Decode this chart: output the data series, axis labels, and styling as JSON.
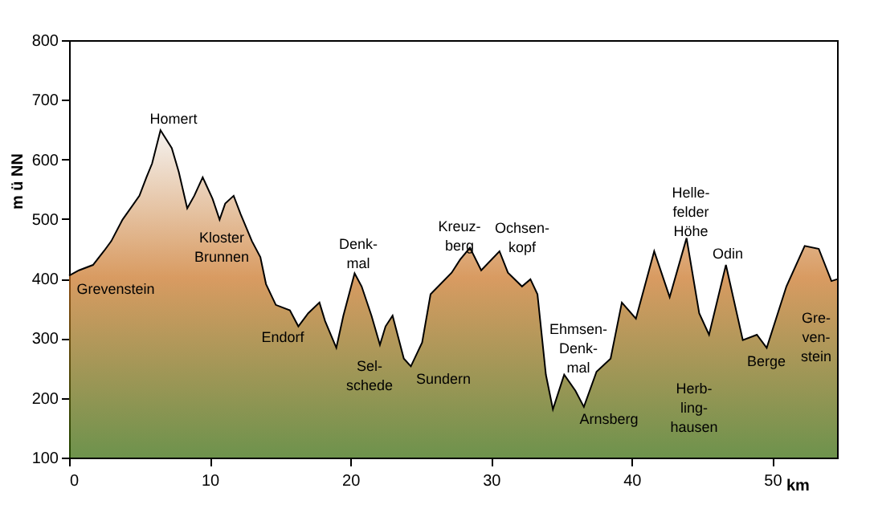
{
  "chart_data": {
    "type": "area",
    "xlabel": "km",
    "ylabel": "m ü NN",
    "x": [
      0,
      0.7,
      1.7,
      2.5,
      3,
      3.8,
      5,
      5.5,
      5.9,
      6.5,
      7.3,
      7.8,
      8.4,
      8.9,
      9.5,
      10.2,
      10.7,
      11.1,
      11.7,
      12.2,
      13,
      13.6,
      14,
      14.7,
      15.7,
      16.3,
      17,
      17.8,
      18.2,
      19,
      19.5,
      20.3,
      20.8,
      21.5,
      22.1,
      22.5,
      23,
      23.8,
      24.3,
      25.1,
      25.7,
      27.2,
      27.8,
      28.5,
      29.3,
      30.6,
      31.2,
      32.2,
      32.8,
      33.3,
      33.9,
      34.4,
      35.2,
      36,
      36.6,
      37.5,
      38.5,
      39.3,
      40.3,
      41.6,
      42.7,
      43.9,
      44.8,
      45.5,
      46.7,
      47.9,
      48.9,
      49.6,
      51,
      52.3,
      53.3,
      54.2,
      54.6
    ],
    "series": [
      {
        "color": "#c8701e",
        "values": [
          405,
          414,
          423,
          447,
          463,
          499,
          539,
          570,
          593,
          649,
          619,
          579,
          518,
          539,
          570,
          534,
          499,
          526,
          539,
          508,
          463,
          436,
          391,
          356,
          347,
          320,
          342,
          360,
          329,
          284,
          338,
          409,
          387,
          338,
          289,
          320,
          338,
          266,
          253,
          293,
          374,
          410,
          432,
          452,
          414,
          446,
          410,
          387,
          399,
          374,
          239,
          181,
          239,
          212,
          185,
          244,
          266,
          360,
          333,
          446,
          369,
          468,
          342,
          306,
          423,
          297,
          306,
          284,
          387,
          455,
          450,
          396,
          399
        ]
      }
    ],
    "xlim": [
      0,
      54.6
    ],
    "ylim": [
      100,
      800
    ],
    "xticks": [
      0,
      10,
      20,
      30,
      40,
      50
    ],
    "yticks": [
      100,
      200,
      300,
      400,
      500,
      600,
      700,
      800
    ],
    "grid": false,
    "annotations": [
      "Homert",
      "Kloster\nBrunnen",
      "Grevenstein",
      "Endorf",
      "Denk-\nmal",
      "Sel-\nschede",
      "Sundern",
      "Kreuz-\nberg",
      "Ochsen-\nkopf",
      "Ehmsen-\nDenk-\nmal",
      "Arnsberg",
      "Helle-\nfelder\nHöhe",
      "Odin",
      "Herb-\nling-\nhausen",
      "Berge",
      "Gre-\nven-\nstein"
    ]
  }
}
